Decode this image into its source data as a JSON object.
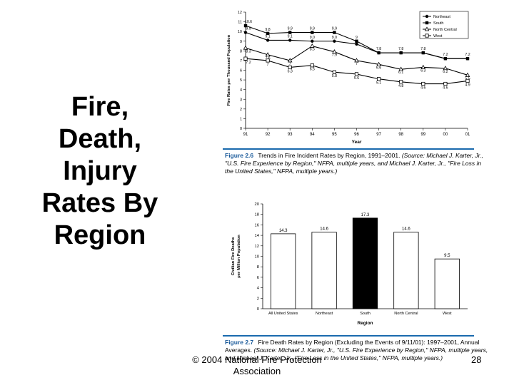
{
  "slide": {
    "title_lines": [
      "Fire,",
      "Death,",
      "Injury",
      "Rates By",
      "Region"
    ],
    "footer_line1": "© 2004 National Fire Protection",
    "footer_line2": "Association",
    "page_number": "28"
  },
  "captions": {
    "fig1_label": "Figure 2.6",
    "fig1_text": "Trends in Fire Incident Rates by Region, 1991–2001.",
    "fig1_source": "(Source: Michael J. Karter, Jr., \"U.S. Fire Experience by Region,\" NFPA, multiple years, and Michael J. Karter, Jr., \"Fire Loss in the United States,\" NFPA, multiple years.)",
    "fig2_label": "Figure 2.7",
    "fig2_text": "Fire Death Rates by Region (Excluding the Events of 9/11/01): 1997–2001, Annual Averages.",
    "fig2_source": "(Source: Michael J. Karter, Jr., \"U.S. Fire Experience by Region,\" NFPA, multiple years, and Michael J. Karter, Jr., \"Fire Loss in the United States,\" NFPA, multiple years.)"
  },
  "colors": {
    "bar_default": "#ffffff",
    "bar_highlight": "#000000",
    "caption_rule": "#1a6aae"
  },
  "chart_data": [
    {
      "type": "line",
      "xlabel": "Year",
      "ylabel": "Fire Rates per Thousand Population",
      "x": [
        "91",
        "92",
        "93",
        "94",
        "95",
        "96",
        "97",
        "98",
        "99",
        "00",
        "01"
      ],
      "ylim": [
        0,
        12
      ],
      "yticks": [
        0,
        1,
        2,
        3,
        4,
        5,
        6,
        7,
        8,
        9,
        10,
        11,
        12
      ],
      "legend_position": "top-right",
      "series": [
        {
          "name": "Northeast",
          "marker": "circle-filled",
          "values": [
            9.9,
            9.1,
            9.1,
            9.0,
            9.0,
            8.7,
            7.8,
            7.8,
            7.8,
            7.2,
            7.2
          ],
          "labels": [
            "9.9",
            "9.1",
            "9.1",
            "9.0",
            "9.0",
            "",
            "7.8",
            "7.8",
            "7.8",
            "7.2",
            "7.2"
          ]
        },
        {
          "name": "South",
          "marker": "square-filled",
          "values": [
            10.6,
            9.8,
            9.9,
            9.9,
            9.9,
            9.0,
            7.8,
            7.8,
            7.8,
            7.2,
            7.2
          ],
          "labels": [
            "10.6",
            "9.8",
            "9.9",
            "9.9",
            "9.9",
            "9",
            "",
            "",
            "",
            "",
            ""
          ]
        },
        {
          "name": "North Central",
          "marker": "triangle-open",
          "values": [
            8.3,
            7.6,
            7.0,
            8.5,
            7.9,
            7.0,
            6.6,
            6.1,
            6.3,
            6.2,
            5.5
          ],
          "labels": [
            "8.3",
            "7.6",
            "7",
            "8.5",
            "7.9",
            "7",
            "6.6",
            "6.1",
            "6.3",
            "6.2",
            "5.5"
          ]
        },
        {
          "name": "West",
          "marker": "square-open",
          "values": [
            7.2,
            7.0,
            6.3,
            6.5,
            5.8,
            5.6,
            5.1,
            4.8,
            4.6,
            4.6,
            4.9
          ],
          "labels": [
            "7.2",
            "7",
            "6.3",
            "6.5",
            "5.8",
            "5.6",
            "5.1",
            "4.8",
            "4.6",
            "4.6",
            "4.9"
          ]
        }
      ]
    },
    {
      "type": "bar",
      "xlabel": "Region",
      "ylabel": "Civilian Fire Deaths per Million Population",
      "categories": [
        "All United States",
        "Northeast",
        "South",
        "North Central",
        "West"
      ],
      "values": [
        14.3,
        14.6,
        17.3,
        14.6,
        9.5
      ],
      "labels": [
        "14.3",
        "14.6",
        "17.3",
        "14.6",
        "9.5"
      ],
      "highlight_index": 2,
      "ylim": [
        0,
        20
      ],
      "yticks": [
        0,
        2,
        4,
        6,
        8,
        10,
        12,
        14,
        16,
        18,
        20
      ]
    }
  ]
}
